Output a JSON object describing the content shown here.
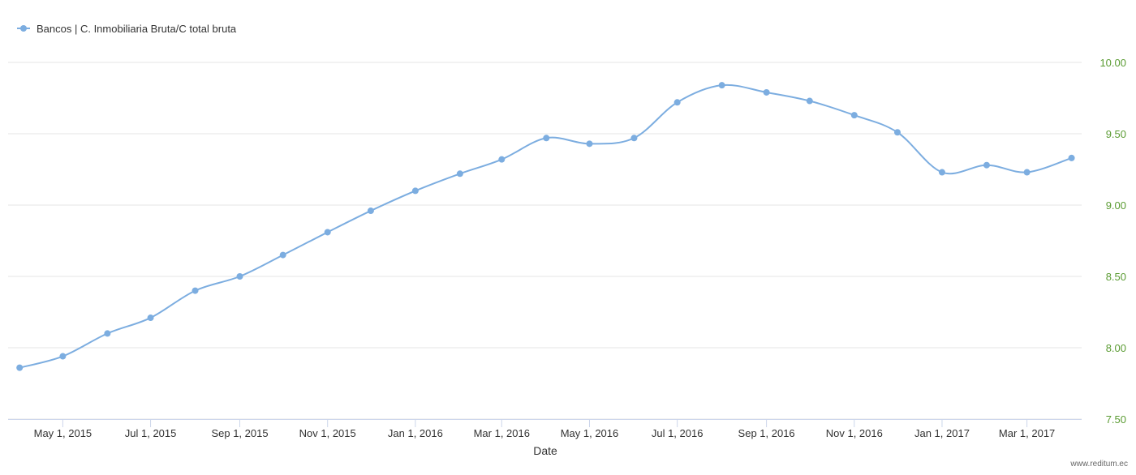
{
  "chart_data": {
    "type": "line",
    "x": [
      "2015-04-01",
      "2015-05-01",
      "2015-06-01",
      "2015-07-01",
      "2015-08-01",
      "2015-09-01",
      "2015-10-01",
      "2015-11-01",
      "2015-12-01",
      "2016-01-01",
      "2016-02-01",
      "2016-03-01",
      "2016-04-01",
      "2016-05-01",
      "2016-06-01",
      "2016-07-01",
      "2016-08-01",
      "2016-09-01",
      "2016-10-01",
      "2016-11-01",
      "2016-12-01",
      "2017-01-01",
      "2017-02-01",
      "2017-03-01",
      "2017-04-01"
    ],
    "series": [
      {
        "name": "Bancos | C. Inmobiliaria Bruta/C total bruta",
        "color": "#7cade0",
        "values": [
          7.86,
          7.94,
          8.1,
          8.21,
          8.4,
          8.5,
          8.65,
          8.81,
          8.96,
          9.1,
          9.22,
          9.32,
          9.47,
          9.43,
          9.47,
          9.72,
          9.84,
          9.79,
          9.73,
          9.63,
          9.51,
          9.23,
          9.28,
          9.23,
          9.33
        ]
      }
    ],
    "x_label": "Date",
    "xlim": [
      "2015-03-24",
      "2017-04-08"
    ],
    "xticks": [
      {
        "value": "2015-05-01",
        "label": "May 1, 2015"
      },
      {
        "value": "2015-07-01",
        "label": "Jul 1, 2015"
      },
      {
        "value": "2015-09-01",
        "label": "Sep 1, 2015"
      },
      {
        "value": "2015-11-01",
        "label": "Nov 1, 2015"
      },
      {
        "value": "2016-01-01",
        "label": "Jan 1, 2016"
      },
      {
        "value": "2016-03-01",
        "label": "Mar 1, 2016"
      },
      {
        "value": "2016-05-01",
        "label": "May 1, 2016"
      },
      {
        "value": "2016-07-01",
        "label": "Jul 1, 2016"
      },
      {
        "value": "2016-09-01",
        "label": "Sep 1, 2016"
      },
      {
        "value": "2016-11-01",
        "label": "Nov 1, 2016"
      },
      {
        "value": "2017-01-01",
        "label": "Jan 1, 2017"
      },
      {
        "value": "2017-03-01",
        "label": "Mar 1, 2017"
      }
    ],
    "ylim": [
      7.5,
      10
    ],
    "yticks": [
      {
        "value": 7.5,
        "label": "7.50"
      },
      {
        "value": 8,
        "label": "8.00"
      },
      {
        "value": 8.5,
        "label": "8.50"
      },
      {
        "value": 9,
        "label": "9.00"
      },
      {
        "value": 9.5,
        "label": "9.50"
      },
      {
        "value": 10,
        "label": "10.00"
      }
    ],
    "grid": true,
    "legend": "top-left",
    "credit": "www.reditum.ec"
  }
}
